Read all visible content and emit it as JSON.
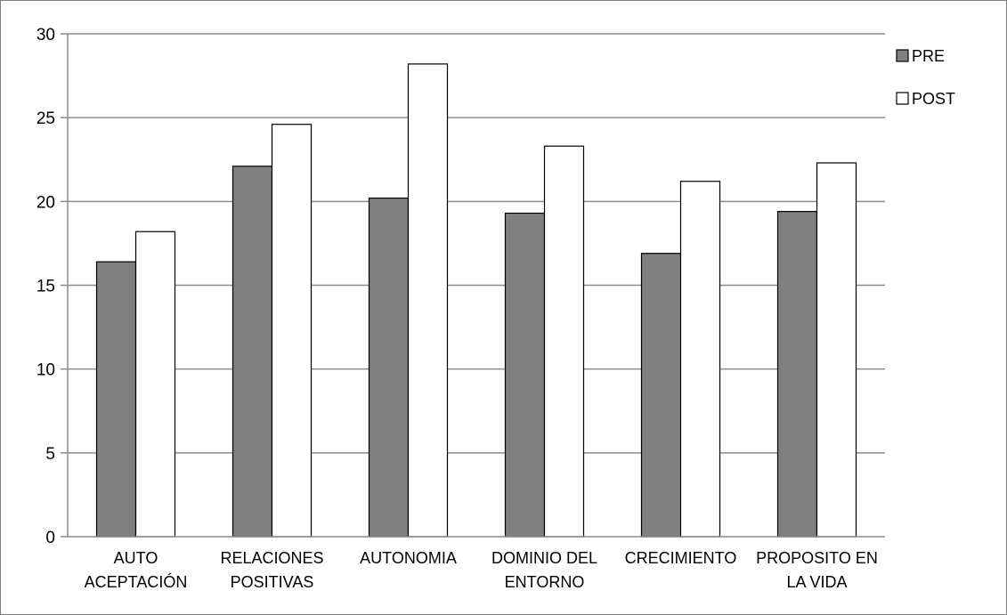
{
  "chart_data": {
    "type": "bar",
    "title": "",
    "xlabel": "",
    "ylabel": "",
    "ylim": [
      0,
      30
    ],
    "yticks": [
      0,
      5,
      10,
      15,
      20,
      25,
      30
    ],
    "grid": true,
    "legend_position": "right",
    "categories": [
      [
        "AUTO",
        "ACEPTACIÓN"
      ],
      [
        "RELACIONES",
        "POSITIVAS"
      ],
      [
        "AUTONOMIA"
      ],
      [
        "DOMINIO DEL",
        "ENTORNO"
      ],
      [
        "CRECIMIENTO"
      ],
      [
        "PROPOSITO EN",
        "LA VIDA"
      ]
    ],
    "series": [
      {
        "name": "PRE",
        "color": "#808080",
        "values": [
          16.4,
          22.1,
          20.2,
          19.3,
          16.9,
          19.4
        ]
      },
      {
        "name": "POST",
        "color": "#ffffff",
        "values": [
          18.2,
          24.6,
          28.2,
          23.3,
          21.2,
          22.3
        ]
      }
    ]
  }
}
